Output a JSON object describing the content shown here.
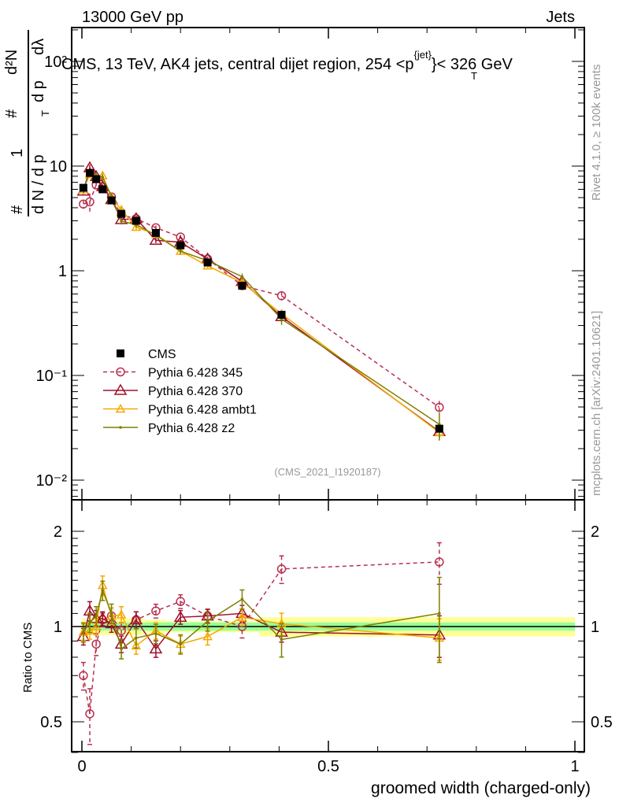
{
  "header": {
    "left": "13000 GeV pp",
    "right": "Jets",
    "title": "CMS, 13 TeV, AK4 jets, central dijet region, 254 <p",
    "title_sup": "{jet}",
    "title_sub": "T",
    "title_end": "}< 326 GeV",
    "side_top": "Rivet 4.1.0, ≥ 100k events",
    "side_bottom": "mcplots.cern.ch [arXiv:2401.10621]",
    "analysis_id": "(CMS_2021_I1920187)"
  },
  "chart_data": {
    "type": "line",
    "title": "CMS, 13 TeV, AK4 jets, central dijet region, 254 < pT{jet} < 326 GeV",
    "xlabel": "groomed width (charged-only)",
    "ylabel_num": "1 / dN/dpT",
    "ylabel_den": "d²N / dpT dλ",
    "ylabel_parts": {
      "hash1": "#",
      "one": "1",
      "dN": "d N / d p",
      "T": "T",
      "hash2": "#",
      "d2N": "d²N",
      "dpdl": "d p",
      "dl": "dλ"
    },
    "ratio_ylabel": "Ratio to CMS",
    "xlim": [
      -0.02,
      1.02
    ],
    "ylim": [
      0.0065,
      209
    ],
    "ratio_ylim": [
      0.4,
      2.5
    ],
    "xticks": [
      {
        "v": 0,
        "label": "0"
      },
      {
        "v": 0.5,
        "label": "0.5"
      },
      {
        "v": 1,
        "label": "1"
      }
    ],
    "yticks": [
      {
        "v": 100,
        "label": "10²"
      },
      {
        "v": 10,
        "label": "10"
      },
      {
        "v": 1,
        "label": "1"
      },
      {
        "v": 0.1,
        "label": "10⁻¹"
      },
      {
        "v": 0.01,
        "label": "10⁻²"
      }
    ],
    "ratio_yticks": [
      {
        "v": 2,
        "label": "2"
      },
      {
        "v": 1,
        "label": "1"
      },
      {
        "v": 0.5,
        "label": "0.5"
      }
    ],
    "bin_edges": [
      0,
      0.005,
      0.015,
      0.025,
      0.035,
      0.05,
      0.08,
      0.125,
      0.17,
      0.22,
      0.29,
      0.36,
      0.45,
      1.0
    ],
    "x": [
      0.003,
      0.016,
      0.029,
      0.042,
      0.06,
      0.08,
      0.11,
      0.15,
      0.2,
      0.255,
      0.325,
      0.405,
      0.725
    ],
    "data": {
      "name": "CMS",
      "values": [
        6.2,
        8.6,
        7.5,
        6.0,
        4.7,
        3.5,
        3.0,
        2.3,
        1.75,
        1.2,
        0.72,
        0.38,
        0.031
      ],
      "stat_rel": [
        0.03,
        0.03,
        0.03,
        0.03,
        0.03,
        0.03,
        0.03,
        0.03,
        0.03,
        0.03,
        0.03,
        0.03,
        0.03
      ],
      "total_rel": [
        0.06,
        0.06,
        0.06,
        0.06,
        0.06,
        0.06,
        0.06,
        0.05,
        0.04,
        0.04,
        0.04,
        0.07,
        0.07
      ]
    },
    "series": [
      {
        "name": "Pythia 6.428 345",
        "color": "#b8304f",
        "marker": "circle",
        "dash": true,
        "ratio": [
          0.7,
          0.53,
          0.88,
          1.05,
          1.08,
          0.97,
          1.05,
          1.12,
          1.2,
          1.08,
          1.0,
          1.52,
          1.6
        ],
        "err_rel": [
          0.1,
          0.2,
          0.08,
          0.05,
          0.06,
          0.06,
          0.06,
          0.05,
          0.05,
          0.05,
          0.08,
          0.1,
          0.15
        ]
      },
      {
        "name": "Pythia 6.428 370",
        "color": "#a0102a",
        "marker": "triangle",
        "dash": false,
        "ratio": [
          0.93,
          1.12,
          1.06,
          1.06,
          1.02,
          0.88,
          1.05,
          0.85,
          1.07,
          1.08,
          1.1,
          0.96,
          0.94
        ],
        "err_rel": [
          0.06,
          0.07,
          0.06,
          0.05,
          0.06,
          0.06,
          0.06,
          0.06,
          0.05,
          0.05,
          0.06,
          0.07,
          0.15
        ]
      },
      {
        "name": "Pythia 6.428 ambt1",
        "color": "#f5a800",
        "marker": "triangle-small",
        "dash": false,
        "ratio": [
          0.96,
          0.97,
          1.0,
          1.35,
          1.08,
          1.09,
          0.87,
          0.97,
          0.88,
          0.93,
          1.07,
          1.02,
          0.92
        ],
        "err_rel": [
          0.06,
          0.06,
          0.06,
          0.07,
          0.06,
          0.06,
          0.06,
          0.06,
          0.06,
          0.06,
          0.06,
          0.08,
          0.15
        ]
      },
      {
        "name": "Pythia 6.428 z2",
        "color": "#7f7f00",
        "marker": "dot",
        "dash": false,
        "ratio": [
          0.96,
          1.03,
          1.08,
          1.3,
          1.1,
          0.85,
          0.92,
          0.95,
          0.88,
          1.04,
          1.22,
          0.91,
          1.1
        ],
        "err_rel": [
          0.07,
          0.07,
          0.07,
          0.07,
          0.07,
          0.07,
          0.07,
          0.07,
          0.07,
          0.07,
          0.07,
          0.12,
          0.3
        ]
      }
    ],
    "legend_position": "bottom-left",
    "grid": false
  }
}
